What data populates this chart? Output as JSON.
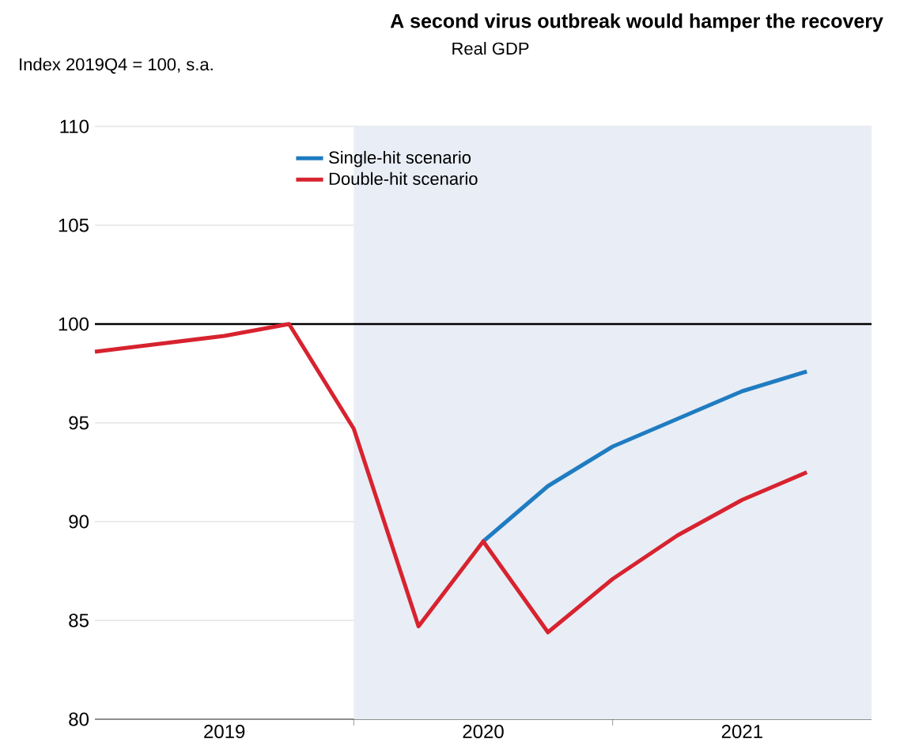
{
  "chart_data": {
    "type": "line",
    "title": "A second virus outbreak would hamper the recovery",
    "subtitle": "Real GDP",
    "ylabel": "Index 2019Q4 = 100, s.a.",
    "x": [
      2019,
      2019.25,
      2019.5,
      2019.75,
      2020,
      2020.25,
      2020.5,
      2020.75,
      2021,
      2021.25,
      2021.5,
      2021.75
    ],
    "series": [
      {
        "name": "Single-hit scenario",
        "color": "#1f7cc1",
        "values": [
          null,
          null,
          null,
          null,
          null,
          null,
          89.0,
          91.8,
          93.8,
          95.2,
          96.6,
          97.6
        ]
      },
      {
        "name": "Double-hit scenario",
        "color": "#d7232f",
        "values": [
          98.6,
          99.0,
          99.4,
          100.0,
          94.7,
          84.7,
          89.0,
          84.4,
          87.1,
          89.3,
          91.1,
          92.5
        ]
      }
    ],
    "xlim": [
      2019,
      2022
    ],
    "xticks": [
      {
        "value": 2019.5,
        "label": "2019"
      },
      {
        "value": 2020,
        "label": null
      },
      {
        "value": 2020.5,
        "label": "2020"
      },
      {
        "value": 2021,
        "label": null
      },
      {
        "value": 2021.5,
        "label": "2021"
      }
    ],
    "ylim": [
      80,
      110
    ],
    "yticks": [
      80,
      85,
      90,
      95,
      100,
      105,
      110
    ],
    "ref_lines": [
      {
        "axis": "y",
        "value": 100,
        "color": "#000000"
      }
    ],
    "bands": [
      {
        "axis": "x",
        "from": 2020,
        "to": 2022,
        "color": "#e9edf5"
      }
    ],
    "grid": "y",
    "legend": "top",
    "marker": "none",
    "line_style": "solid"
  }
}
